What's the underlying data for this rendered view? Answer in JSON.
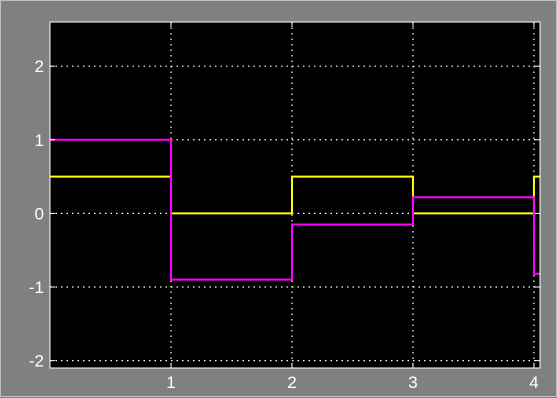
{
  "chart_data": {
    "type": "line",
    "title": "",
    "xlabel": "",
    "ylabel": "",
    "xlim": [
      0,
      4.05
    ],
    "ylim": [
      -2.1,
      2.6
    ],
    "grid": true,
    "background": "#000000",
    "frame_color": "#808080",
    "xticks": [
      1,
      2,
      3,
      4
    ],
    "yticks": [
      -2,
      -1,
      0,
      1,
      2
    ],
    "xtick_labels": [
      "1",
      "2",
      "3",
      "4"
    ],
    "ytick_labels": [
      "-2",
      "-1",
      "0",
      "1",
      "2"
    ],
    "step": "post",
    "series": [
      {
        "color": "#ffff00",
        "x": [
          0,
          1,
          2,
          3,
          4,
          4.05
        ],
        "y": [
          0.5,
          0,
          0.5,
          0,
          0.5,
          0.5
        ]
      },
      {
        "color": "#ff00ff",
        "x": [
          0,
          1,
          2,
          3,
          4,
          4.05
        ],
        "y": [
          1,
          -0.9,
          -0.15,
          0.22,
          -0.82,
          -0.82
        ]
      }
    ]
  }
}
